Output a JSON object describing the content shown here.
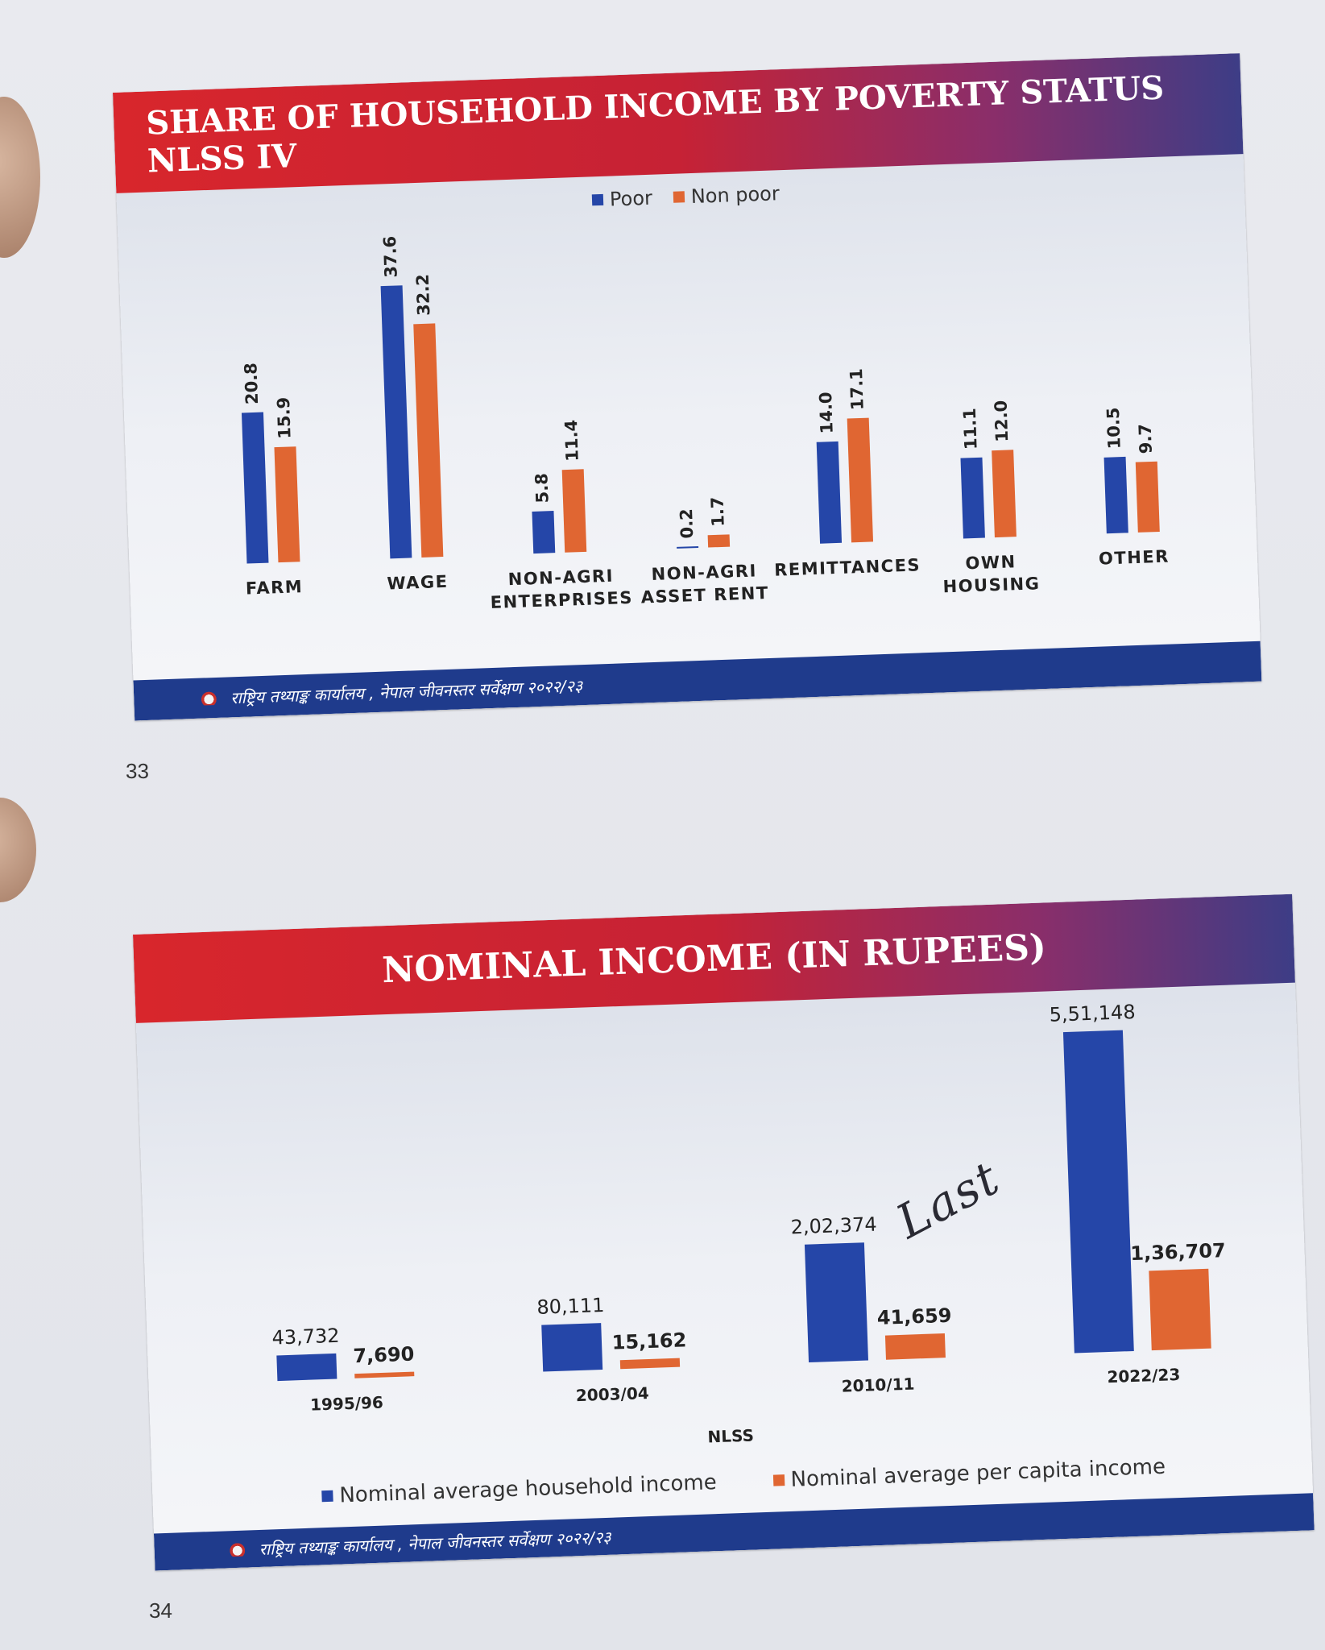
{
  "colors": {
    "poor": "#2546a8",
    "nonpoor": "#e06632",
    "household": "#2546a8",
    "percapita": "#e06632"
  },
  "slide1": {
    "title": "SHARE OF HOUSEHOLD INCOME BY POVERTY STATUS NLSS IV",
    "footer": "राष्ट्रिय तथ्याङ्क कार्यालय , नेपाल जीवनस्तर सर्वेक्षण २०२२/२३",
    "page_number": "33"
  },
  "slide2": {
    "title": "NOMINAL INCOME (IN RUPEES)",
    "footer": "राष्ट्रिय तथ्याङ्क कार्यालय , नेपाल जीवनस्तर सर्वेक्षण २०२२/२३",
    "page_number": "34",
    "annotation": "Last"
  },
  "chart_data": [
    {
      "type": "bar",
      "title": "SHARE OF HOUSEHOLD INCOME BY POVERTY STATUS NLSS IV",
      "categories": [
        [
          "FARM"
        ],
        [
          "WAGE"
        ],
        [
          "NON-AGRI",
          "ENTERPRISES"
        ],
        [
          "NON-AGRI",
          "ASSET RENT"
        ],
        [
          "REMITTANCES"
        ],
        [
          "OWN",
          "HOUSING"
        ],
        [
          "OTHER"
        ]
      ],
      "series": [
        {
          "name": "Poor",
          "values": [
            20.8,
            37.6,
            5.8,
            0.2,
            14.0,
            11.1,
            10.5
          ],
          "labels": [
            "20.8",
            "37.6",
            "5.8",
            "0.2",
            "14.0",
            "11.1",
            "10.5"
          ]
        },
        {
          "name": "Non poor",
          "values": [
            15.9,
            32.2,
            11.4,
            1.7,
            17.1,
            12.0,
            9.7
          ],
          "labels": [
            "15.9",
            "32.2",
            "11.4",
            "1.7",
            "17.1",
            "12.0",
            "9.7"
          ]
        }
      ],
      "legend": "top-center",
      "grid": false,
      "ylim": [
        0,
        40
      ]
    },
    {
      "type": "bar",
      "title": "NOMINAL INCOME (IN RUPEES)",
      "categories": [
        "1995/96",
        "2003/04",
        "2010/11",
        "2022/23"
      ],
      "xlabel": "NLSS",
      "series": [
        {
          "name": "Nominal average household income",
          "values": [
            43732,
            80111,
            202374,
            551148
          ],
          "labels": [
            "43,732",
            "80,111",
            "2,02,374",
            "5,51,148"
          ]
        },
        {
          "name": "Nominal average per capita income",
          "values": [
            7690,
            15162,
            41659,
            136707
          ],
          "labels": [
            "7,690",
            "15,162",
            "41,659",
            "1,36,707"
          ]
        }
      ],
      "legend": "bottom",
      "grid": false,
      "ylim": [
        0,
        560000
      ]
    }
  ]
}
